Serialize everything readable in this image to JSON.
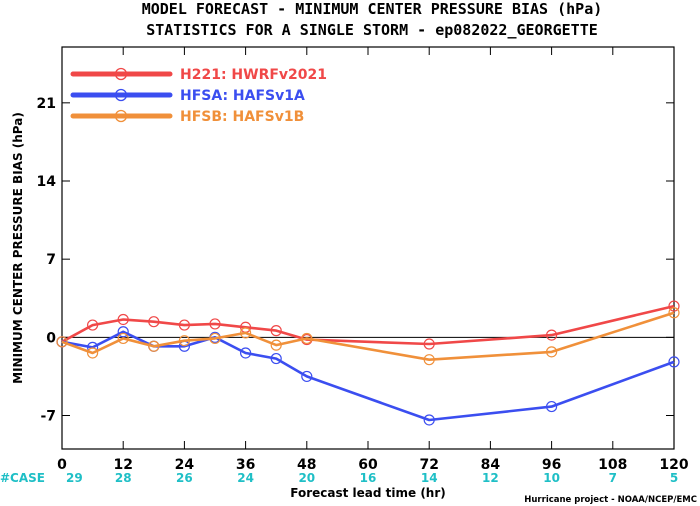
{
  "title_line1": "MODEL FORECAST - MINIMUM CENTER PRESSURE BIAS (hPa)",
  "title_line2": "STATISTICS FOR A SINGLE STORM - ep082022_GEORGETTE",
  "credit": "Hurricane project - NOAA/NCEP/EMC",
  "cases_label": "#CASE",
  "chart_data": {
    "type": "line",
    "xlabel": "Forecast lead time (hr)",
    "ylabel": "MINIMUM CENTER PRESSURE BIAS (hPa)",
    "xlim": [
      0,
      120
    ],
    "ylim": [
      -10,
      26
    ],
    "x_ticks": [
      0,
      12,
      24,
      36,
      48,
      60,
      72,
      84,
      96,
      108,
      120
    ],
    "y_ticks": [
      -7,
      0,
      7,
      14,
      21
    ],
    "grid": false,
    "zero_line": true,
    "legend_position": "top-left",
    "case_counts": [
      {
        "x": 0,
        "n": "29"
      },
      {
        "x": 12,
        "n": "28"
      },
      {
        "x": 24,
        "n": "26"
      },
      {
        "x": 36,
        "n": "24"
      },
      {
        "x": 48,
        "n": "20"
      },
      {
        "x": 60,
        "n": "16"
      },
      {
        "x": 72,
        "n": "14"
      },
      {
        "x": 84,
        "n": "12"
      },
      {
        "x": 96,
        "n": "10"
      },
      {
        "x": 108,
        "n": "7"
      },
      {
        "x": 120,
        "n": "5"
      }
    ],
    "series": [
      {
        "name": "H221: HWRFv2021",
        "color": "#f04848",
        "x": [
          0,
          6,
          12,
          18,
          24,
          30,
          36,
          42,
          48,
          72,
          96,
          120
        ],
        "values": [
          -0.4,
          1.1,
          1.6,
          1.4,
          1.1,
          1.2,
          0.9,
          0.6,
          -0.2,
          -0.6,
          0.2,
          2.8
        ]
      },
      {
        "name": "HFSA: HAFSv1A",
        "color": "#3b4ef0",
        "x": [
          0,
          6,
          12,
          18,
          24,
          30,
          36,
          42,
          48,
          72,
          96,
          120
        ],
        "values": [
          -0.4,
          -0.9,
          0.5,
          -0.8,
          -0.8,
          0.0,
          -1.4,
          -1.9,
          -3.5,
          -7.4,
          -6.2,
          -2.2
        ]
      },
      {
        "name": "HFSB: HAFSv1B",
        "color": "#f0903a",
        "x": [
          0,
          6,
          12,
          18,
          24,
          30,
          36,
          42,
          48,
          72,
          96,
          120
        ],
        "values": [
          -0.4,
          -1.4,
          -0.1,
          -0.8,
          -0.3,
          -0.1,
          0.4,
          -0.7,
          -0.1,
          -2.0,
          -1.3,
          2.2
        ]
      }
    ]
  }
}
